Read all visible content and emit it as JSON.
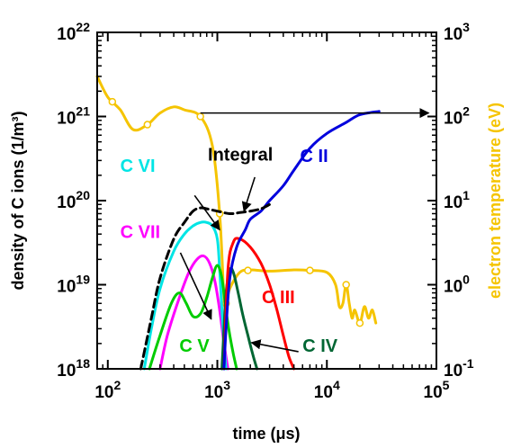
{
  "chart_data": {
    "type": "line",
    "title": "",
    "xlabel": "time (μs)",
    "ylabel": "density of C ions (1/m³)",
    "y2label": "electron temperature (eV)",
    "xscale": "log",
    "yscale": "log",
    "y2scale": "log",
    "xlim": [
      80,
      100000
    ],
    "ylim": [
      1e+18,
      1e+22
    ],
    "y2lim": [
      0.1,
      1000
    ],
    "x_ticks": [
      {
        "value": 100,
        "base": "10",
        "exp": "2"
      },
      {
        "value": 1000,
        "base": "10",
        "exp": "3"
      },
      {
        "value": 10000,
        "base": "10",
        "exp": "4"
      },
      {
        "value": 100000,
        "base": "10",
        "exp": "5"
      }
    ],
    "y_ticks": [
      {
        "value": 1e+18,
        "base": "10",
        "exp": "18"
      },
      {
        "value": 1e+19,
        "base": "10",
        "exp": "19"
      },
      {
        "value": 1e+20,
        "base": "10",
        "exp": "20"
      },
      {
        "value": 1e+21,
        "base": "10",
        "exp": "21"
      },
      {
        "value": 1e+22,
        "base": "10",
        "exp": "22"
      }
    ],
    "y2_ticks": [
      {
        "value": 0.1,
        "base": "10",
        "exp": "-1"
      },
      {
        "value": 1,
        "base": "10",
        "exp": "0"
      },
      {
        "value": 10,
        "base": "10",
        "exp": "1"
      },
      {
        "value": 100,
        "base": "10",
        "exp": "2"
      },
      {
        "value": 1000,
        "base": "10",
        "exp": "3"
      }
    ],
    "series": [
      {
        "name": "Te",
        "axis": "y2",
        "color": "#f5c400",
        "style": "solid",
        "markers": "open-circle",
        "x": [
          80,
          100,
          130,
          170,
          230,
          300,
          400,
          500,
          700,
          900,
          1050,
          1150,
          1200,
          1300,
          1600,
          2000,
          3000,
          5000,
          7000,
          10000,
          12000,
          13000,
          14000,
          15000,
          16000,
          17000,
          18000,
          20000,
          22000,
          24000,
          26000,
          28000
        ],
        "y": [
          300,
          170,
          120,
          70,
          80,
          110,
          130,
          120,
          100,
          45,
          7,
          0.7,
          0.6,
          0.9,
          1.4,
          1.5,
          1.45,
          1.5,
          1.48,
          1.4,
          1.0,
          0.55,
          0.6,
          1.0,
          0.6,
          0.4,
          0.5,
          0.35,
          0.55,
          0.4,
          0.5,
          0.35
        ],
        "marker_x": [
          110,
          230,
          700,
          1050,
          1200,
          1900,
          7000,
          15000,
          20000
        ]
      },
      {
        "name": "C VII",
        "axis": "y",
        "color": "#ff00ff",
        "style": "solid",
        "x": [
          300,
          350,
          450,
          550,
          650,
          750,
          850,
          950,
          1050,
          1150,
          1250
        ],
        "y": [
          1e+18,
          2.5e+18,
          7e+18,
          1.4e+19,
          2e+19,
          2.2e+19,
          1.8e+19,
          1.1e+19,
          5e+18,
          2e+18,
          1e+18
        ]
      },
      {
        "name": "C VI",
        "axis": "y",
        "color": "#00e5e5",
        "style": "solid",
        "x": [
          215,
          250,
          300,
          400,
          500,
          600,
          700,
          800,
          900,
          1000,
          1050,
          1100,
          1150,
          1200
        ],
        "y": [
          1e+18,
          3e+18,
          9e+18,
          2.5e+19,
          4e+19,
          5e+19,
          5.5e+19,
          5.5e+19,
          5e+19,
          3.5e+19,
          1.5e+19,
          5e+18,
          2e+18,
          1e+18
        ]
      },
      {
        "name": "C V",
        "axis": "y",
        "color": "#00cc00",
        "style": "solid",
        "x": [
          240,
          300,
          380,
          450,
          520,
          600,
          700,
          800,
          900,
          1000,
          1100,
          1200,
          1300,
          1400,
          1500
        ],
        "y": [
          1e+18,
          2.5e+18,
          6e+18,
          8e+18,
          6e+18,
          4.2e+18,
          4.5e+18,
          7e+18,
          1.2e+19,
          1.7e+19,
          1.2e+19,
          5e+18,
          2.5e+18,
          1.5e+18,
          1e+18
        ]
      },
      {
        "name": "C IV",
        "axis": "y",
        "color": "#006633",
        "style": "solid",
        "x": [
          1100,
          1150,
          1200,
          1300,
          1400,
          1550,
          1700,
          1900,
          2100,
          2300
        ],
        "y": [
          1e+18,
          3e+18,
          8e+18,
          1.5e+19,
          1.4e+19,
          8e+18,
          4.5e+18,
          2.5e+18,
          1.5e+18,
          1e+18
        ]
      },
      {
        "name": "C III",
        "axis": "y",
        "color": "#ff0000",
        "style": "solid",
        "x": [
          1150,
          1250,
          1400,
          1600,
          2000,
          2500,
          3000,
          3500,
          4000,
          4500,
          5000
        ],
        "y": [
          1e+18,
          1.5e+19,
          3.2e+19,
          3.5e+19,
          2.8e+19,
          1.8e+19,
          1e+19,
          5e+18,
          2.5e+18,
          1.4e+18,
          1e+18
        ]
      },
      {
        "name": "C II",
        "axis": "y",
        "color": "#0000dd",
        "style": "solid",
        "x": [
          1150,
          1200,
          1300,
          1500,
          1800,
          2000,
          2500,
          3000,
          4000,
          5000,
          7000,
          10000,
          15000,
          20000,
          30000
        ],
        "y": [
          1e+18,
          3e+18,
          1.2e+19,
          2.8e+19,
          4.5e+19,
          6e+19,
          7.5e+19,
          1e+20,
          1.5e+20,
          2.3e+20,
          4.2e+20,
          6.3e+20,
          8.5e+20,
          1.05e+21,
          1.15e+21
        ]
      },
      {
        "name": "Integral",
        "axis": "y",
        "color": "#000000",
        "style": "dashed",
        "x": [
          200,
          250,
          300,
          400,
          500,
          600,
          700,
          800,
          1000,
          1300,
          1600,
          2000,
          2500,
          3000
        ],
        "y": [
          1e+18,
          4e+18,
          1.2e+19,
          3.5e+19,
          5.5e+19,
          7.5e+19,
          8.2e+19,
          8e+19,
          7.5e+19,
          7e+19,
          7.2e+19,
          7.5e+19,
          8e+19,
          9e+19
        ]
      }
    ],
    "labels": [
      {
        "text": "C VI",
        "color": "#00e5e5",
        "x": 130,
        "y": 2.2e+20
      },
      {
        "text": "C VII",
        "color": "#ff00ff",
        "x": 130,
        "y": 3.6e+19
      },
      {
        "text": "C V",
        "color": "#00cc00",
        "x": 450,
        "y": 1.6e+18
      },
      {
        "text": "Integral",
        "color": "#000000",
        "x": 820,
        "y": 3e+20
      },
      {
        "text": "C II",
        "color": "#0000dd",
        "x": 5700,
        "y": 2.9e+20
      },
      {
        "text": "C III",
        "color": "#ff0000",
        "x": 2550,
        "y": 6e+18
      },
      {
        "text": "C IV",
        "color": "#006633",
        "x": 6000,
        "y": 1.6e+18
      }
    ],
    "arrows": [
      {
        "color": "#000000",
        "from": [
          620,
          1.15e+20
        ],
        "to": [
          1050,
          4.5e+19
        ]
      },
      {
        "color": "#000000",
        "from": [
          460,
          2.4e+19
        ],
        "to": [
          880,
          3.9e+18
        ]
      },
      {
        "color": "#000000",
        "from": [
          2200,
          1.9e+20
        ],
        "to": [
          1750,
          7.5e+19
        ]
      },
      {
        "color": "#000000",
        "from": [
          5500,
          1.6e+18
        ],
        "to": [
          2050,
          2.05e+18
        ]
      },
      {
        "color": "#000000",
        "from": [
          700,
          1.1e+21
        ],
        "to": [
          85000,
          1.1e+21
        ]
      }
    ],
    "grid": false,
    "legend": "inline labels"
  }
}
